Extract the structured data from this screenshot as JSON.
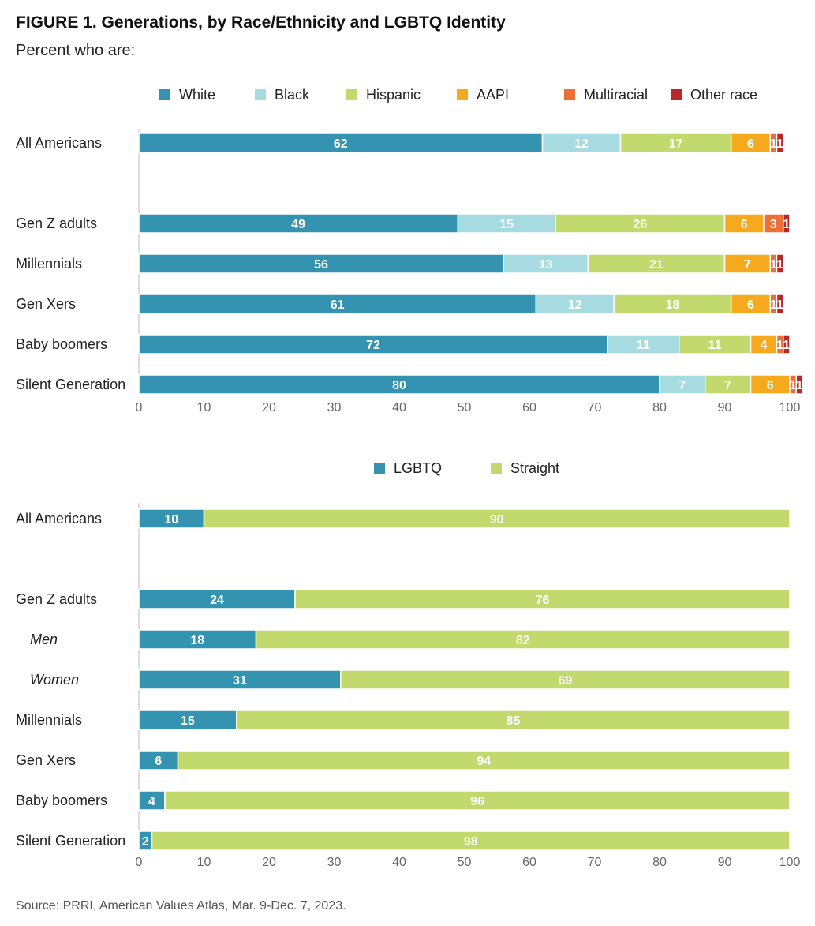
{
  "title": "FIGURE 1.  Generations, by Race/Ethnicity and LGBTQ Identity",
  "subtitle": "Percent who are:",
  "source": "Source: PRRI, American Values Atlas, Mar. 9-Dec. 7, 2023.",
  "chart_data": [
    {
      "type": "bar",
      "orientation": "horizontal",
      "stacked": true,
      "xlim": [
        0,
        100
      ],
      "xticks": [
        "0",
        "10",
        "20",
        "30",
        "40",
        "50",
        "60",
        "70",
        "80",
        "90",
        "100"
      ],
      "legend_position": "top",
      "categories": [
        {
          "label": "All Americans",
          "italic": false
        },
        {
          "label": "Gen Z adults",
          "italic": false
        },
        {
          "label": "Millennials",
          "italic": false
        },
        {
          "label": "Gen Xers",
          "italic": false
        },
        {
          "label": "Baby boomers",
          "italic": false
        },
        {
          "label": "Silent Generation",
          "italic": false
        }
      ],
      "series": [
        {
          "name": "White",
          "color": "#3393b0",
          "values": [
            62,
            49,
            56,
            61,
            72,
            80
          ]
        },
        {
          "name": "Black",
          "color": "#a6dbe2",
          "values": [
            12,
            15,
            13,
            12,
            11,
            7
          ]
        },
        {
          "name": "Hispanic",
          "color": "#c2d96e",
          "values": [
            17,
            26,
            21,
            18,
            11,
            7
          ]
        },
        {
          "name": "AAPI",
          "color": "#f7a91d",
          "values": [
            6,
            6,
            7,
            6,
            4,
            6
          ]
        },
        {
          "name": "Multiracial",
          "color": "#ec6f37",
          "values": [
            1,
            3,
            1,
            1,
            1,
            1
          ]
        },
        {
          "name": "Other race",
          "color": "#b82829",
          "values": [
            1,
            1,
            1,
            1,
            1,
            1
          ]
        }
      ]
    },
    {
      "type": "bar",
      "orientation": "horizontal",
      "stacked": true,
      "xlim": [
        0,
        100
      ],
      "xticks": [
        "0",
        "10",
        "20",
        "30",
        "40",
        "50",
        "60",
        "70",
        "80",
        "90",
        "100"
      ],
      "legend_position": "top",
      "categories": [
        {
          "label": "All Americans",
          "italic": false
        },
        {
          "label": "Gen Z adults",
          "italic": false
        },
        {
          "label": "Men",
          "italic": true
        },
        {
          "label": "Women",
          "italic": true
        },
        {
          "label": "Millennials",
          "italic": false
        },
        {
          "label": "Gen Xers",
          "italic": false
        },
        {
          "label": "Baby boomers",
          "italic": false
        },
        {
          "label": "Silent Generation",
          "italic": false
        }
      ],
      "series": [
        {
          "name": "LGBTQ",
          "color": "#3393b0",
          "values": [
            10,
            24,
            18,
            31,
            15,
            6,
            4,
            2
          ]
        },
        {
          "name": "Straight",
          "color": "#c2d96e",
          "values": [
            90,
            76,
            82,
            69,
            85,
            94,
            96,
            98
          ]
        }
      ]
    }
  ]
}
